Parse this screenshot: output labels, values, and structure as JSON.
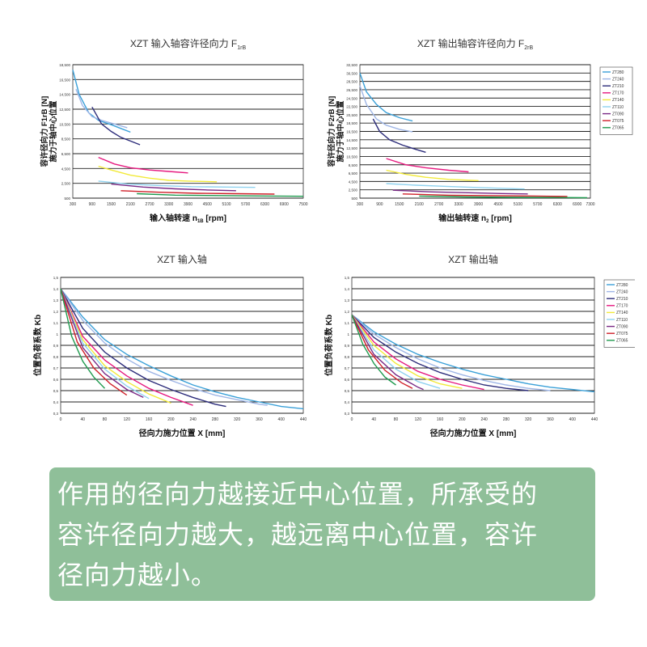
{
  "colors": {
    "ZT280": "#3aa0d8",
    "ZT240": "#9fb6e6",
    "ZT210": "#2c2c7a",
    "ZT170": "#e6197f",
    "ZT140": "#f2ea3a",
    "ZT110": "#8fd2ef",
    "ZT090": "#7a2a86",
    "ZT075": "#d0202a",
    "ZT065": "#1f9a4e"
  },
  "note": {
    "line1": "作用的径向力越接近中心位置，所承受的",
    "line2": "容许径向力越大，越远离中心位置，容许",
    "line3": "径向力越小。"
  },
  "chart_data": [
    {
      "id": "c1",
      "type": "line",
      "title": "XZT 输入轴容许径向力 F",
      "title_sub": "1rB",
      "xlabel": "输入轴转速 n",
      "xlabel_sub": "1B",
      "xlabel_unit": " [rpm]",
      "ylabel1": "容许径向力 F1rB [N]",
      "ylabel2": "施力于轴中心位置",
      "xticks": [
        "300",
        "900",
        "1500",
        "2100",
        "2700",
        "3300",
        "3900",
        "4500",
        "5100",
        "5700",
        "6300",
        "6900",
        "7500"
      ],
      "yticks": [
        "500",
        "2,500",
        "4,500",
        "6,500",
        "8,500",
        "10,500",
        "12,500",
        "14,500",
        "16,500",
        "18,500"
      ],
      "xlim": [
        300,
        7500
      ],
      "ylim": [
        500,
        18500
      ],
      "show_legend": false,
      "series": [
        {
          "key": "ZT280",
          "x": [
            300,
            500,
            800,
            1100,
            1500,
            1800,
            2100
          ],
          "y": [
            17800,
            14500,
            12000,
            11000,
            10400,
            9900,
            9400
          ]
        },
        {
          "key": "ZT240",
          "x": [
            400,
            600,
            900,
            1200,
            1600,
            2000
          ],
          "y": [
            15200,
            13000,
            11500,
            11000,
            10500,
            10000
          ]
        },
        {
          "key": "ZT210",
          "x": [
            900,
            1200,
            1500,
            1800,
            2100,
            2400
          ],
          "y": [
            12800,
            10500,
            9500,
            8700,
            8200,
            7700
          ]
        },
        {
          "key": "ZT170",
          "x": [
            1100,
            1600,
            2100,
            2700,
            3300,
            3900
          ],
          "y": [
            6000,
            5100,
            4600,
            4300,
            4100,
            3900
          ]
        },
        {
          "key": "ZT140",
          "x": [
            1100,
            1500,
            2100,
            2700,
            3300,
            3900,
            4800
          ],
          "y": [
            4800,
            4300,
            3600,
            3200,
            2900,
            2800,
            2700
          ]
        },
        {
          "key": "ZT110",
          "x": [
            1100,
            2000,
            3000,
            4000,
            5100,
            6000
          ],
          "y": [
            2800,
            2400,
            2200,
            2050,
            2000,
            1950
          ]
        },
        {
          "key": "ZT090",
          "x": [
            1500,
            2500,
            3500,
            4500,
            5400
          ],
          "y": [
            2400,
            2000,
            1750,
            1600,
            1500
          ]
        },
        {
          "key": "ZT075",
          "x": [
            1800,
            3000,
            4200,
            5400,
            6600
          ],
          "y": [
            1500,
            1300,
            1150,
            1100,
            1050
          ]
        },
        {
          "key": "ZT065",
          "x": [
            2300,
            3500,
            4800,
            6100,
            7500
          ],
          "y": [
            1100,
            900,
            850,
            800,
            750
          ]
        }
      ]
    },
    {
      "id": "c2",
      "type": "line",
      "title": "XZT 输出轴容许径向力 F",
      "title_sub": "2rB",
      "xlabel": "输出轴转速 n",
      "xlabel_sub": "2",
      "xlabel_unit": " [rpm]",
      "ylabel1": "容许径向力 F2rB [N]",
      "ylabel2": "施力于轴中心位置",
      "xticks": [
        "300",
        "900",
        "1500",
        "2100",
        "2700",
        "3300",
        "3900",
        "4500",
        "5100",
        "5700",
        "6300",
        "6900",
        "7300"
      ],
      "yticks": [
        "500",
        "2,500",
        "4,500",
        "6,500",
        "8,500",
        "10,500",
        "12,500",
        "14,500",
        "16,500",
        "18,500",
        "20,500",
        "22,500",
        "24,500",
        "26,500",
        "28,500",
        "30,500",
        "32,500"
      ],
      "xlim": [
        300,
        7300
      ],
      "ylim": [
        500,
        32500
      ],
      "show_legend": true,
      "series": [
        {
          "key": "ZT280",
          "x": [
            300,
            500,
            800,
            1100,
            1500,
            1900
          ],
          "y": [
            30500,
            26000,
            23000,
            21000,
            19800,
            19000
          ]
        },
        {
          "key": "ZT240",
          "x": [
            300,
            500,
            800,
            1100,
            1500,
            1900
          ],
          "y": [
            27500,
            23000,
            19500,
            18000,
            17000,
            16400
          ]
        },
        {
          "key": "ZT210",
          "x": [
            700,
            900,
            1200,
            1600,
            2000,
            2300
          ],
          "y": [
            19500,
            16500,
            14500,
            13200,
            12200,
            11500
          ]
        },
        {
          "key": "ZT170",
          "x": [
            1100,
            1700,
            2300,
            3000,
            3600
          ],
          "y": [
            10000,
            8500,
            7800,
            7200,
            6800
          ]
        },
        {
          "key": "ZT140",
          "x": [
            1100,
            1700,
            2300,
            3000,
            3900
          ],
          "y": [
            7200,
            6200,
            5500,
            5000,
            4700
          ]
        },
        {
          "key": "ZT110",
          "x": [
            1100,
            2000,
            3000,
            4000,
            5300
          ],
          "y": [
            4000,
            3600,
            3300,
            3000,
            2700
          ]
        },
        {
          "key": "ZT090",
          "x": [
            1300,
            2500,
            3600,
            4600,
            5400
          ],
          "y": [
            2400,
            2000,
            1800,
            1600,
            1500
          ]
        },
        {
          "key": "ZT075",
          "x": [
            1600,
            3000,
            4300,
            5600,
            6600
          ],
          "y": [
            1500,
            1200,
            1100,
            1000,
            900
          ]
        },
        {
          "key": "ZT065",
          "x": [
            2100,
            3500,
            5000,
            6300,
            7200
          ],
          "y": [
            1000,
            800,
            700,
            650,
            600
          ]
        }
      ]
    },
    {
      "id": "c3",
      "type": "line",
      "title": "XZT 输入轴",
      "title_sub": "",
      "xlabel": "径向力施力位置 X [mm]",
      "xlabel_sub": "",
      "xlabel_unit": "",
      "ylabel1": "位置负荷系数 Kb",
      "ylabel2": "",
      "xticks": [
        "0",
        "40",
        "80",
        "120",
        "160",
        "200",
        "240",
        "280",
        "320",
        "360",
        "400",
        "440"
      ],
      "yticks": [
        "0,3",
        "0,4",
        "0,5",
        "0,6",
        "0,7",
        "0,8",
        "0,9",
        "1",
        "1,1",
        "1,2",
        "1,3",
        "1,4",
        "1,5"
      ],
      "xlim": [
        0,
        440
      ],
      "ylim": [
        0.3,
        1.5
      ],
      "show_legend": false,
      "series": [
        {
          "key": "ZT280",
          "x": [
            0,
            40,
            80,
            120,
            160,
            200,
            240,
            280,
            320,
            360,
            400,
            440
          ],
          "y": [
            1.4,
            1.15,
            0.95,
            0.82,
            0.72,
            0.63,
            0.55,
            0.49,
            0.44,
            0.4,
            0.36,
            0.34
          ]
        },
        {
          "key": "ZT240",
          "x": [
            0,
            40,
            80,
            120,
            160,
            200,
            240,
            280,
            320,
            360,
            375
          ],
          "y": [
            1.4,
            1.12,
            0.92,
            0.78,
            0.67,
            0.59,
            0.52,
            0.46,
            0.42,
            0.38,
            0.37
          ]
        },
        {
          "key": "ZT210",
          "x": [
            0,
            40,
            80,
            120,
            160,
            200,
            240,
            280,
            300
          ],
          "y": [
            1.4,
            1.05,
            0.84,
            0.7,
            0.59,
            0.51,
            0.44,
            0.38,
            0.36
          ]
        },
        {
          "key": "ZT170",
          "x": [
            0,
            40,
            80,
            120,
            160,
            200,
            240
          ],
          "y": [
            1.4,
            0.98,
            0.77,
            0.63,
            0.52,
            0.44,
            0.37
          ]
        },
        {
          "key": "ZT140",
          "x": [
            0,
            40,
            80,
            120,
            160,
            200
          ],
          "y": [
            1.4,
            0.95,
            0.72,
            0.58,
            0.47,
            0.39
          ]
        },
        {
          "key": "ZT110",
          "x": [
            0,
            40,
            80,
            120,
            160
          ],
          "y": [
            1.4,
            0.92,
            0.69,
            0.54,
            0.43
          ]
        },
        {
          "key": "ZT090",
          "x": [
            0,
            40,
            80,
            120,
            150
          ],
          "y": [
            1.4,
            0.88,
            0.65,
            0.51,
            0.44
          ]
        },
        {
          "key": "ZT075",
          "x": [
            0,
            30,
            60,
            90,
            120
          ],
          "y": [
            1.4,
            0.93,
            0.7,
            0.56,
            0.46
          ]
        },
        {
          "key": "ZT065",
          "x": [
            0,
            20,
            40,
            60,
            80
          ],
          "y": [
            1.4,
            0.98,
            0.76,
            0.62,
            0.52
          ]
        }
      ]
    },
    {
      "id": "c4",
      "type": "line",
      "title": "XZT 输出轴",
      "title_sub": "",
      "xlabel": "径向力施力位置 X [mm]",
      "xlabel_sub": "",
      "xlabel_unit": "",
      "ylabel1": "位置负荷系数 Kb",
      "ylabel2": "",
      "xticks": [
        "0",
        "40",
        "80",
        "120",
        "160",
        "200",
        "240",
        "280",
        "320",
        "360",
        "400",
        "440"
      ],
      "yticks": [
        "0,3",
        "0,4",
        "0,5",
        "0,6",
        "0,7",
        "0,8",
        "0,9",
        "1",
        "1,1",
        "1,2",
        "1,3",
        "1,4",
        "1,5"
      ],
      "xlim": [
        0,
        440
      ],
      "ylim": [
        0.3,
        1.5
      ],
      "show_legend": true,
      "series": [
        {
          "key": "ZT280",
          "x": [
            0,
            40,
            80,
            120,
            160,
            200,
            240,
            280,
            320,
            360,
            400,
            440
          ],
          "y": [
            1.17,
            1.02,
            0.91,
            0.82,
            0.75,
            0.69,
            0.64,
            0.6,
            0.56,
            0.53,
            0.51,
            0.49
          ]
        },
        {
          "key": "ZT240",
          "x": [
            0,
            40,
            80,
            120,
            160,
            200,
            240,
            280,
            320,
            360
          ],
          "y": [
            1.17,
            1.0,
            0.88,
            0.78,
            0.7,
            0.64,
            0.59,
            0.55,
            0.52,
            0.5
          ]
        },
        {
          "key": "ZT210",
          "x": [
            0,
            40,
            80,
            120,
            160,
            200,
            240,
            280,
            320
          ],
          "y": [
            1.17,
            0.97,
            0.84,
            0.74,
            0.66,
            0.6,
            0.55,
            0.52,
            0.5
          ]
        },
        {
          "key": "ZT170",
          "x": [
            0,
            40,
            80,
            120,
            160,
            200,
            240
          ],
          "y": [
            1.17,
            0.93,
            0.78,
            0.67,
            0.6,
            0.55,
            0.51
          ]
        },
        {
          "key": "ZT140",
          "x": [
            0,
            40,
            80,
            120,
            160,
            200
          ],
          "y": [
            1.17,
            0.9,
            0.74,
            0.63,
            0.56,
            0.52
          ]
        },
        {
          "key": "ZT110",
          "x": [
            0,
            40,
            80,
            120,
            160
          ],
          "y": [
            1.17,
            0.86,
            0.69,
            0.58,
            0.52
          ]
        },
        {
          "key": "ZT090",
          "x": [
            0,
            40,
            80,
            120,
            130
          ],
          "y": [
            1.17,
            0.82,
            0.64,
            0.53,
            0.51
          ]
        },
        {
          "key": "ZT075",
          "x": [
            0,
            30,
            60,
            90,
            110
          ],
          "y": [
            1.17,
            0.86,
            0.68,
            0.57,
            0.52
          ]
        },
        {
          "key": "ZT065",
          "x": [
            0,
            20,
            40,
            60,
            80
          ],
          "y": [
            1.17,
            0.91,
            0.74,
            0.62,
            0.55
          ]
        }
      ]
    }
  ]
}
